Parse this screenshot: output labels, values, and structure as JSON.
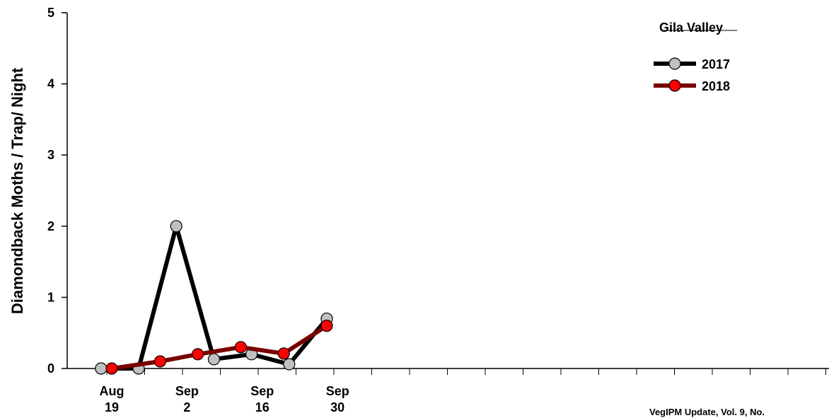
{
  "footer_text": "VegIPM Update, Vol. 9, No.",
  "chart_data": {
    "type": "line",
    "title": "",
    "legend_title": "Gila Valley",
    "legend_position": "top-right",
    "xlabel": "",
    "ylabel": "Diamondback Moths / Trap/ Night",
    "ylim": [
      0,
      5
    ],
    "yticks": [
      0,
      1,
      2,
      3,
      4,
      5
    ],
    "grid": false,
    "x_tick_labels": [
      {
        "line1": "Aug",
        "line2": "19",
        "day": 0
      },
      {
        "line1": "Sep",
        "line2": "2",
        "day": 14
      },
      {
        "line1": "Sep",
        "line2": "16",
        "day": 28
      },
      {
        "line1": "Sep",
        "line2": "30",
        "day": 42
      }
    ],
    "series": [
      {
        "name": "2017",
        "line_color": "#000000",
        "marker_color": "#c0c0c0",
        "points": [
          {
            "day": -2,
            "y": 0
          },
          {
            "day": 5,
            "y": 0
          },
          {
            "day": 12,
            "y": 2.0
          },
          {
            "day": 19,
            "y": 0.13
          },
          {
            "day": 26,
            "y": 0.2
          },
          {
            "day": 33,
            "y": 0.06
          },
          {
            "day": 40,
            "y": 0.7
          }
        ]
      },
      {
        "name": "2018",
        "line_color": "#7a0000",
        "marker_color": "#ff0000",
        "points": [
          {
            "day": 0,
            "y": 0
          },
          {
            "day": 9,
            "y": 0.1
          },
          {
            "day": 16,
            "y": 0.2
          },
          {
            "day": 24,
            "y": 0.3
          },
          {
            "day": 32,
            "y": 0.21
          },
          {
            "day": 40,
            "y": 0.6
          }
        ]
      }
    ]
  }
}
